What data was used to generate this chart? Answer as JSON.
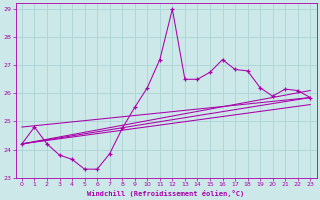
{
  "xlabel": "Windchill (Refroidissement éolien,°C)",
  "bg_color": "#cce8e8",
  "grid_color": "#aad4d4",
  "line_color": "#aa00aa",
  "xlim": [
    -0.5,
    23.5
  ],
  "ylim": [
    23.0,
    29.2
  ],
  "yticks": [
    23,
    24,
    25,
    26,
    27,
    28,
    29
  ],
  "xticks": [
    0,
    1,
    2,
    3,
    4,
    5,
    6,
    7,
    8,
    9,
    10,
    11,
    12,
    13,
    14,
    15,
    16,
    17,
    18,
    19,
    20,
    21,
    22,
    23
  ],
  "main_x": [
    0,
    1,
    2,
    3,
    4,
    5,
    6,
    7,
    8,
    9,
    10,
    11,
    12,
    13,
    14,
    15,
    16,
    17,
    18,
    19,
    20,
    21,
    22,
    23
  ],
  "main_y": [
    24.2,
    24.8,
    24.2,
    23.8,
    23.65,
    23.3,
    23.3,
    23.85,
    24.75,
    25.5,
    26.2,
    27.2,
    29.0,
    26.5,
    26.5,
    26.75,
    27.2,
    26.85,
    26.8,
    26.2,
    25.9,
    26.15,
    26.1,
    25.85
  ],
  "straight_lines": [
    {
      "x": [
        0,
        23
      ],
      "y": [
        24.2,
        26.1
      ]
    },
    {
      "x": [
        0,
        23
      ],
      "y": [
        24.2,
        25.85
      ]
    },
    {
      "x": [
        0,
        23
      ],
      "y": [
        24.2,
        25.6
      ]
    },
    {
      "x": [
        0,
        23
      ],
      "y": [
        24.8,
        25.85
      ]
    }
  ]
}
